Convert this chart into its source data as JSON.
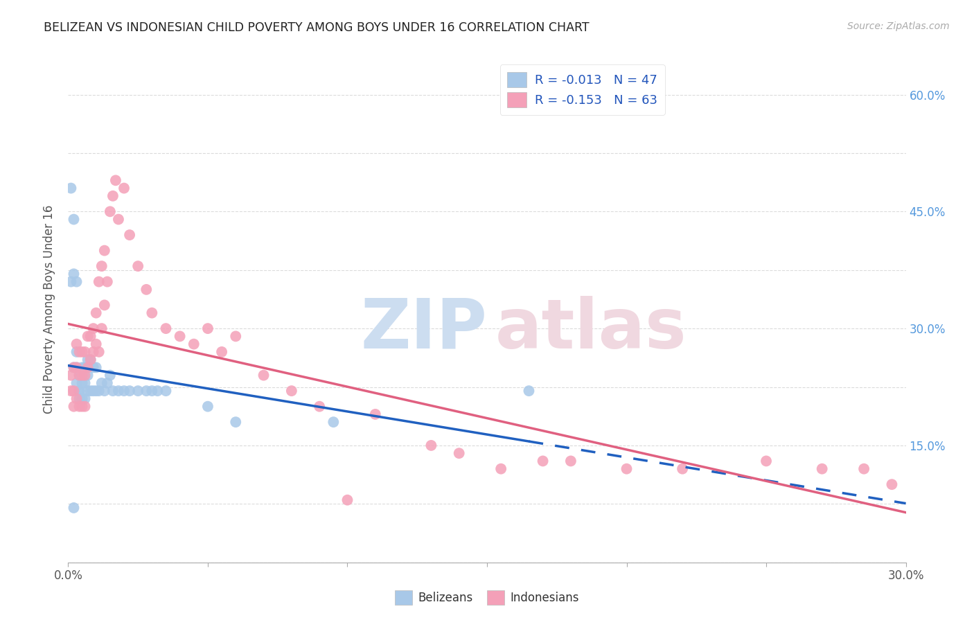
{
  "title": "BELIZEAN VS INDONESIAN CHILD POVERTY AMONG BOYS UNDER 16 CORRELATION CHART",
  "source": "Source: ZipAtlas.com",
  "ylabel": "Child Poverty Among Boys Under 16",
  "xlim": [
    0.0,
    0.3
  ],
  "ylim": [
    0.0,
    0.65
  ],
  "xtick_vals": [
    0.0,
    0.05,
    0.1,
    0.15,
    0.2,
    0.25,
    0.3
  ],
  "xtick_labels": [
    "0.0%",
    "",
    "",
    "",
    "",
    "",
    "30.0%"
  ],
  "ytick_vals": [
    0.0,
    0.075,
    0.15,
    0.225,
    0.3,
    0.375,
    0.45,
    0.525,
    0.6
  ],
  "ytick_labels_right": [
    "",
    "",
    "15.0%",
    "",
    "30.0%",
    "",
    "45.0%",
    "",
    "60.0%"
  ],
  "belizean_R": -0.013,
  "belizean_N": 47,
  "indonesian_R": -0.153,
  "indonesian_N": 63,
  "belizean_color": "#a8c8e8",
  "indonesian_color": "#f4a0b8",
  "belizean_line_color": "#2060c0",
  "indonesian_line_color": "#e06080",
  "belizean_x": [
    0.001,
    0.001,
    0.002,
    0.002,
    0.002,
    0.003,
    0.003,
    0.003,
    0.003,
    0.004,
    0.004,
    0.004,
    0.004,
    0.005,
    0.005,
    0.005,
    0.006,
    0.006,
    0.006,
    0.007,
    0.007,
    0.007,
    0.008,
    0.008,
    0.009,
    0.009,
    0.01,
    0.01,
    0.011,
    0.012,
    0.013,
    0.014,
    0.015,
    0.016,
    0.018,
    0.02,
    0.022,
    0.025,
    0.028,
    0.03,
    0.032,
    0.035,
    0.05,
    0.06,
    0.095,
    0.002,
    0.165
  ],
  "belizean_y": [
    0.36,
    0.48,
    0.44,
    0.37,
    0.25,
    0.36,
    0.27,
    0.25,
    0.23,
    0.22,
    0.24,
    0.21,
    0.22,
    0.25,
    0.23,
    0.21,
    0.25,
    0.23,
    0.21,
    0.26,
    0.24,
    0.22,
    0.26,
    0.22,
    0.25,
    0.22,
    0.25,
    0.22,
    0.22,
    0.23,
    0.22,
    0.23,
    0.24,
    0.22,
    0.22,
    0.22,
    0.22,
    0.22,
    0.22,
    0.22,
    0.22,
    0.22,
    0.2,
    0.18,
    0.18,
    0.07,
    0.22
  ],
  "indonesian_x": [
    0.001,
    0.001,
    0.002,
    0.002,
    0.002,
    0.003,
    0.003,
    0.003,
    0.004,
    0.004,
    0.004,
    0.005,
    0.005,
    0.005,
    0.006,
    0.006,
    0.006,
    0.007,
    0.007,
    0.008,
    0.008,
    0.009,
    0.009,
    0.01,
    0.01,
    0.011,
    0.011,
    0.012,
    0.012,
    0.013,
    0.013,
    0.014,
    0.015,
    0.016,
    0.017,
    0.018,
    0.02,
    0.022,
    0.025,
    0.028,
    0.03,
    0.035,
    0.04,
    0.045,
    0.05,
    0.055,
    0.06,
    0.07,
    0.08,
    0.09,
    0.1,
    0.11,
    0.13,
    0.14,
    0.155,
    0.17,
    0.18,
    0.2,
    0.22,
    0.25,
    0.27,
    0.285,
    0.295
  ],
  "indonesian_y": [
    0.24,
    0.22,
    0.25,
    0.22,
    0.2,
    0.28,
    0.25,
    0.21,
    0.27,
    0.24,
    0.2,
    0.27,
    0.24,
    0.2,
    0.27,
    0.24,
    0.2,
    0.29,
    0.25,
    0.29,
    0.26,
    0.3,
    0.27,
    0.32,
    0.28,
    0.36,
    0.27,
    0.38,
    0.3,
    0.4,
    0.33,
    0.36,
    0.45,
    0.47,
    0.49,
    0.44,
    0.48,
    0.42,
    0.38,
    0.35,
    0.32,
    0.3,
    0.29,
    0.28,
    0.3,
    0.27,
    0.29,
    0.24,
    0.22,
    0.2,
    0.08,
    0.19,
    0.15,
    0.14,
    0.12,
    0.13,
    0.13,
    0.12,
    0.12,
    0.13,
    0.12,
    0.12,
    0.1
  ],
  "grid_color": "#cccccc",
  "watermark_zip_color": "#ccddf0",
  "watermark_atlas_color": "#f0d8e0"
}
